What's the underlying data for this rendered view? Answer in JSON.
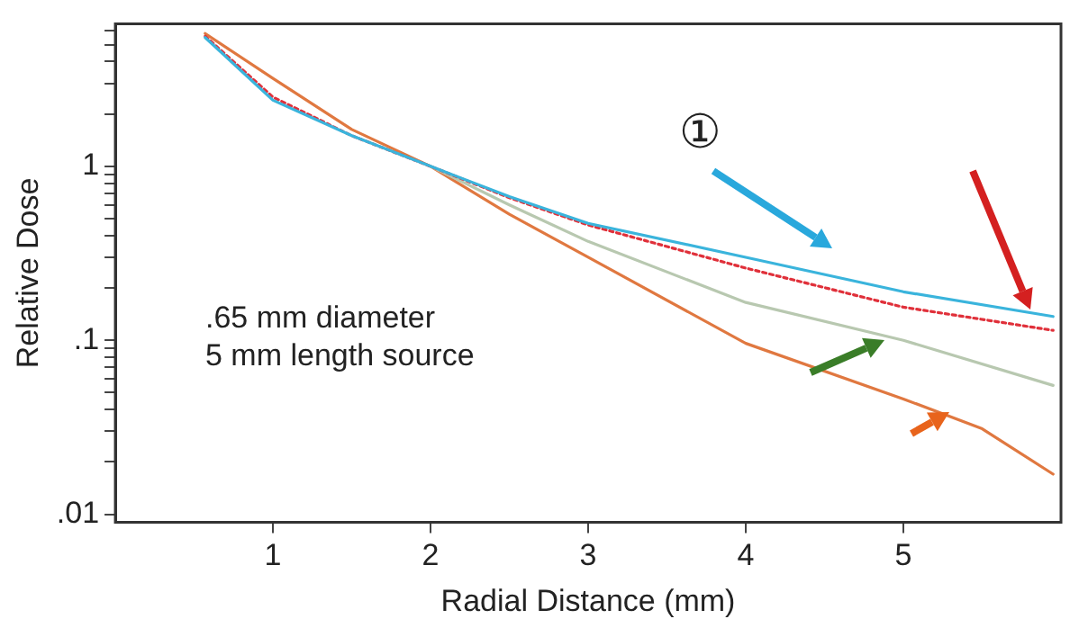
{
  "chart_data": {
    "type": "line",
    "xlabel": "Radial Distance (mm)",
    "ylabel": "Relative Dose",
    "log": "y",
    "grid": false,
    "legend": false,
    "marker": "none",
    "xlim": [
      0,
      6
    ],
    "xticks": [
      1,
      2,
      3,
      4,
      5
    ],
    "ylim": [
      0.009,
      6.6
    ],
    "yticks": [
      {
        "value": 0.01,
        "label": ".01"
      },
      {
        "value": 0.02,
        "label": null
      },
      {
        "value": 0.03,
        "label": null
      },
      {
        "value": 0.04,
        "label": null
      },
      {
        "value": 0.05,
        "label": null
      },
      {
        "value": 0.06,
        "label": null
      },
      {
        "value": 0.07,
        "label": null
      },
      {
        "value": 0.08,
        "label": null
      },
      {
        "value": 0.09,
        "label": null
      },
      {
        "value": 0.1,
        "label": ".1"
      },
      {
        "value": 0.2,
        "label": null
      },
      {
        "value": 0.3,
        "label": null
      },
      {
        "value": 0.4,
        "label": null
      },
      {
        "value": 0.5,
        "label": null
      },
      {
        "value": 0.6,
        "label": null
      },
      {
        "value": 0.7,
        "label": null
      },
      {
        "value": 0.8,
        "label": null
      },
      {
        "value": 0.9,
        "label": null
      },
      1,
      {
        "value": 2,
        "label": null
      },
      {
        "value": 3,
        "label": null
      },
      {
        "value": 4,
        "label": null
      },
      {
        "value": 5,
        "label": null
      },
      {
        "value": 6,
        "label": null
      }
    ],
    "annotations": [
      "①",
      ".65 mm diameter\n5 mm length source"
    ],
    "series": [
      {
        "color": "#3ab4dc",
        "line_style": "solid",
        "x": [
          0.57,
          1,
          1.5,
          2,
          2.5,
          3,
          4,
          5,
          5.95
        ],
        "values": [
          5.5,
          2.4,
          1.5,
          1,
          0.67,
          0.47,
          0.3,
          0.19,
          0.137
        ]
      },
      {
        "color": "#e0303a",
        "line_style": "dotted",
        "x": [
          0.57,
          1,
          1.5,
          2,
          2.5,
          3,
          4,
          5,
          5.95
        ],
        "values": [
          5.6,
          2.5,
          1.5,
          1,
          0.66,
          0.46,
          0.26,
          0.155,
          0.114
        ]
      },
      {
        "color": "#b8c8b0",
        "line_style": "solid",
        "x": [
          2,
          2.5,
          3,
          4,
          5,
          5.95
        ],
        "values": [
          1,
          0.6,
          0.37,
          0.165,
          0.1,
          0.055
        ]
      },
      {
        "color": "#e07840",
        "line_style": "solid",
        "x": [
          0.57,
          1,
          1.5,
          2,
          2.5,
          3,
          4,
          5,
          5.5,
          5.95
        ],
        "values": [
          5.8,
          3.2,
          1.63,
          1,
          0.53,
          0.3,
          0.096,
          0.046,
          0.031,
          0.017
        ]
      }
    ]
  }
}
